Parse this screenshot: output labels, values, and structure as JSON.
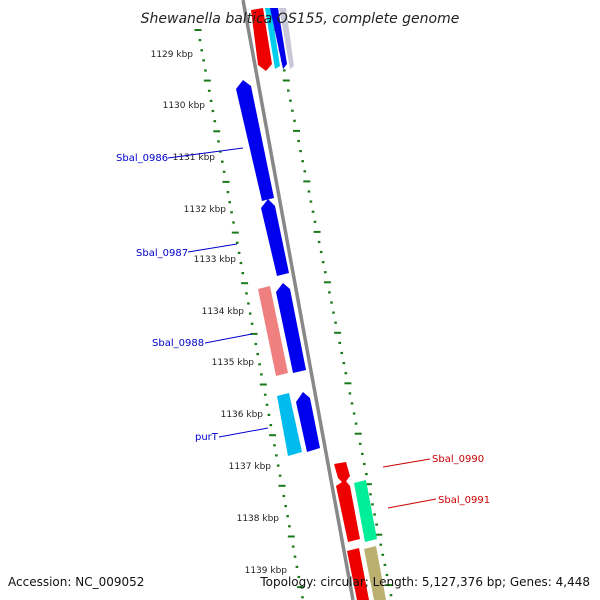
{
  "title": "Shewanella baltica OS155, complete genome",
  "footer": {
    "accession": "Accession: NC_009052",
    "summary": "Topology: circular; Length: 5,127,376 bp; Genes: 4,448"
  },
  "ruler": {
    "ticks": [
      "1129 kbp",
      "1130 kbp",
      "1131 kbp",
      "1132 kbp",
      "1133 kbp",
      "1134 kbp",
      "1135 kbp",
      "1136 kbp",
      "1137 kbp",
      "1138 kbp",
      "1139 kbp"
    ]
  },
  "gene_labels": [
    {
      "text": "Sbal_0986",
      "color": "#0000cc"
    },
    {
      "text": "Sbal_0987",
      "color": "#0000cc"
    },
    {
      "text": "Sbal_0988",
      "color": "#0000cc"
    },
    {
      "text": "purT",
      "color": "#0000cc"
    },
    {
      "text": "Sbal_0990",
      "color": "#cc0000"
    },
    {
      "text": "Sbal_0991",
      "color": "#cc0000"
    }
  ],
  "colors": {
    "tick": "#1a7a1a",
    "backbone": "#888888",
    "blue": "#0000ee",
    "red": "#ee0000",
    "pink": "#f08080",
    "cyan": "#00bbee",
    "mint": "#00ee99",
    "olive": "#bbb070"
  }
}
